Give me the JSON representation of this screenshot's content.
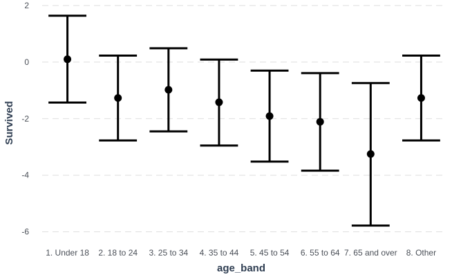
{
  "chart_data": {
    "type": "scatter",
    "xlabel": "age_band",
    "ylabel": "Survived",
    "ylim": [
      -6.4,
      2.0
    ],
    "yticks": [
      2,
      0,
      -2,
      -4,
      -6
    ],
    "grid": true,
    "categories": [
      "1. Under 18",
      "2. 18 to 24",
      "3. 25 to 34",
      "4. 35 to 44",
      "5. 45 to 54",
      "6. 55 to 64",
      "7. 65 and over",
      "8. Other"
    ],
    "estimate": [
      0.1,
      -1.27,
      -0.98,
      -1.42,
      -1.91,
      -2.11,
      -3.25,
      -1.27
    ],
    "lower": [
      -1.43,
      -2.77,
      -2.45,
      -2.95,
      -3.52,
      -3.84,
      -5.78,
      -2.77
    ],
    "upper": [
      1.64,
      0.23,
      0.49,
      0.09,
      -0.3,
      -0.39,
      -0.74,
      0.23
    ]
  },
  "style": {
    "mark_color": "#000000",
    "grid_color": "#dddddd",
    "axis_title_color": "#2f3e52",
    "tick_color": "#4a4f57"
  }
}
